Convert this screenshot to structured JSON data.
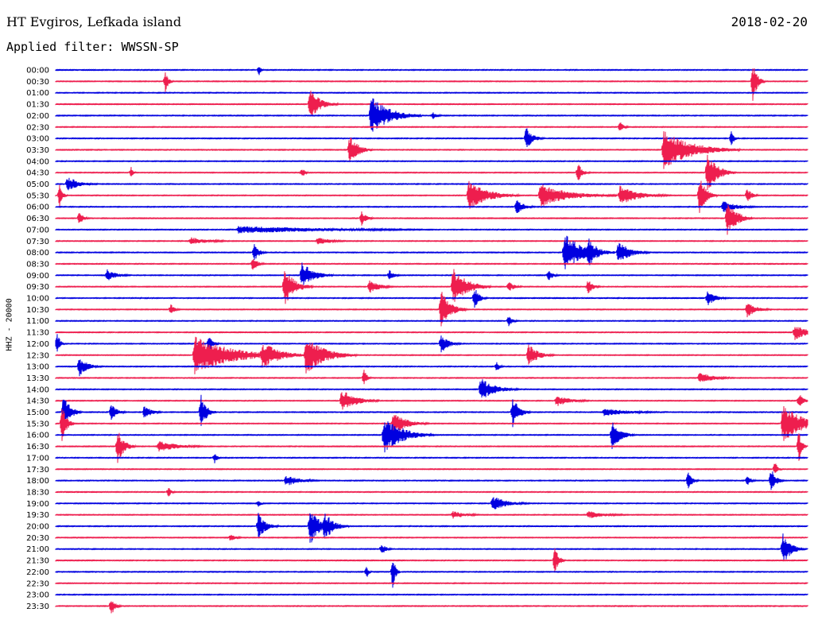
{
  "header": {
    "station": "HT Evgiros, Lefkada island",
    "filter": "Applied filter: WWSSN-SP",
    "date": "2018-02-20"
  },
  "channel_label": "HHZ - 20000",
  "colors": {
    "blue": "#0000e0",
    "red": "#ee1e4e"
  },
  "traces": [
    {
      "time": "00:00",
      "color": "blue",
      "events": [
        [
          326,
          0.3,
          4
        ]
      ]
    },
    {
      "time": "00:30",
      "color": "red",
      "events": [
        [
          208,
          0.6,
          6
        ],
        [
          947,
          1.0,
          10
        ]
      ]
    },
    {
      "time": "01:00",
      "color": "blue",
      "events": []
    },
    {
      "time": "01:30",
      "color": "red",
      "events": [
        [
          390,
          0.8,
          22
        ]
      ]
    },
    {
      "time": "02:00",
      "color": "blue",
      "events": [
        [
          467,
          1.0,
          40
        ],
        [
          545,
          0.2,
          10
        ]
      ]
    },
    {
      "time": "02:30",
      "color": "red",
      "events": [
        [
          780,
          0.3,
          8
        ]
      ]
    },
    {
      "time": "03:00",
      "color": "blue",
      "events": [
        [
          662,
          0.6,
          14
        ],
        [
          920,
          0.4,
          6
        ]
      ]
    },
    {
      "time": "03:30",
      "color": "red",
      "events": [
        [
          440,
          0.8,
          18
        ],
        [
          835,
          1.0,
          60
        ]
      ]
    },
    {
      "time": "04:00",
      "color": "blue",
      "events": []
    },
    {
      "time": "04:30",
      "color": "red",
      "events": [
        [
          165,
          0.3,
          4
        ],
        [
          380,
          0.3,
          6
        ],
        [
          727,
          0.5,
          10
        ],
        [
          890,
          1.0,
          22
        ]
      ]
    },
    {
      "time": "05:00",
      "color": "blue",
      "events": [
        [
          85,
          0.4,
          25
        ]
      ]
    },
    {
      "time": "05:30",
      "color": "red",
      "events": [
        [
          75,
          0.6,
          6
        ],
        [
          590,
          0.8,
          40
        ],
        [
          680,
          0.6,
          60
        ],
        [
          780,
          0.5,
          40
        ],
        [
          880,
          1.0,
          14
        ],
        [
          940,
          0.4,
          10
        ]
      ]
    },
    {
      "time": "06:00",
      "color": "blue",
      "events": [
        [
          650,
          0.4,
          16
        ],
        [
          910,
          0.3,
          30
        ]
      ]
    },
    {
      "time": "06:30",
      "color": "red",
      "events": [
        [
          100,
          0.4,
          8
        ],
        [
          455,
          0.4,
          10
        ],
        [
          915,
          1.0,
          20
        ]
      ]
    },
    {
      "time": "07:00",
      "color": "blue",
      "events": [
        [
          300,
          0.2,
          200
        ]
      ]
    },
    {
      "time": "07:30",
      "color": "red",
      "events": [
        [
          240,
          0.2,
          40
        ],
        [
          400,
          0.2,
          30
        ]
      ]
    },
    {
      "time": "08:00",
      "color": "blue",
      "events": [
        [
          320,
          0.5,
          10
        ],
        [
          710,
          1.0,
          40
        ],
        [
          740,
          0.8,
          20
        ],
        [
          778,
          0.6,
          25
        ]
      ]
    },
    {
      "time": "08:30",
      "color": "red",
      "events": [
        [
          318,
          0.4,
          10
        ]
      ]
    },
    {
      "time": "09:00",
      "color": "blue",
      "events": [
        [
          135,
          0.3,
          20
        ],
        [
          380,
          0.7,
          25
        ],
        [
          490,
          0.3,
          10
        ],
        [
          690,
          0.3,
          10
        ]
      ]
    },
    {
      "time": "09:30",
      "color": "red",
      "events": [
        [
          358,
          1.0,
          22
        ],
        [
          465,
          0.4,
          20
        ],
        [
          570,
          1.0,
          30
        ],
        [
          640,
          0.3,
          12
        ],
        [
          740,
          0.4,
          10
        ]
      ]
    },
    {
      "time": "10:00",
      "color": "blue",
      "events": [
        [
          597,
          0.6,
          10
        ],
        [
          890,
          0.4,
          18
        ]
      ]
    },
    {
      "time": "10:30",
      "color": "red",
      "events": [
        [
          215,
          0.3,
          8
        ],
        [
          555,
          1.0,
          20
        ],
        [
          940,
          0.4,
          20
        ]
      ]
    },
    {
      "time": "11:00",
      "color": "blue",
      "events": [
        [
          640,
          0.3,
          8
        ]
      ]
    },
    {
      "time": "11:30",
      "color": "red",
      "events": [
        [
          1000,
          0.4,
          30
        ]
      ]
    },
    {
      "time": "12:00",
      "color": "blue",
      "events": [
        [
          72,
          0.6,
          6
        ],
        [
          263,
          0.5,
          8
        ],
        [
          555,
          0.5,
          16
        ]
      ]
    },
    {
      "time": "12:30",
      "color": "red",
      "events": [
        [
          245,
          1.0,
          80
        ],
        [
          330,
          0.7,
          40
        ],
        [
          385,
          1.0,
          40
        ],
        [
          665,
          0.6,
          20
        ]
      ]
    },
    {
      "time": "13:00",
      "color": "blue",
      "events": [
        [
          100,
          0.5,
          18
        ],
        [
          625,
          0.3,
          6
        ]
      ]
    },
    {
      "time": "13:30",
      "color": "red",
      "events": [
        [
          458,
          0.5,
          6
        ],
        [
          880,
          0.3,
          30
        ]
      ]
    },
    {
      "time": "14:00",
      "color": "blue",
      "events": [
        [
          605,
          0.6,
          30
        ]
      ]
    },
    {
      "time": "14:30",
      "color": "red",
      "events": [
        [
          430,
          0.6,
          30
        ],
        [
          700,
          0.3,
          30
        ],
        [
          1005,
          0.4,
          10
        ]
      ]
    },
    {
      "time": "15:00",
      "color": "blue",
      "events": [
        [
          80,
          1.0,
          14
        ],
        [
          140,
          0.5,
          12
        ],
        [
          182,
          0.4,
          14
        ],
        [
          253,
          0.9,
          12
        ],
        [
          645,
          0.8,
          14
        ],
        [
          760,
          0.2,
          60
        ]
      ]
    },
    {
      "time": "15:30",
      "color": "red",
      "events": [
        [
          78,
          1.0,
          10
        ],
        [
          495,
          0.6,
          28
        ],
        [
          985,
          1.0,
          40
        ]
      ]
    },
    {
      "time": "16:00",
      "color": "blue",
      "events": [
        [
          483,
          1.0,
          40
        ],
        [
          770,
          0.8,
          18
        ]
      ]
    },
    {
      "time": "16:30",
      "color": "red",
      "events": [
        [
          148,
          0.9,
          14
        ],
        [
          200,
          0.3,
          40
        ],
        [
          1005,
          0.9,
          6
        ]
      ]
    },
    {
      "time": "17:00",
      "color": "blue",
      "events": [
        [
          270,
          0.3,
          6
        ]
      ]
    },
    {
      "time": "17:30",
      "color": "red",
      "events": [
        [
          975,
          0.4,
          6
        ]
      ]
    },
    {
      "time": "18:00",
      "color": "blue",
      "events": [
        [
          360,
          0.3,
          30
        ],
        [
          866,
          0.6,
          8
        ],
        [
          940,
          0.3,
          8
        ],
        [
          970,
          0.7,
          10
        ]
      ]
    },
    {
      "time": "18:30",
      "color": "red",
      "events": [
        [
          212,
          0.3,
          6
        ]
      ]
    },
    {
      "time": "19:00",
      "color": "blue",
      "events": [
        [
          325,
          0.2,
          6
        ],
        [
          620,
          0.4,
          30
        ]
      ]
    },
    {
      "time": "19:30",
      "color": "red",
      "events": [
        [
          570,
          0.2,
          30
        ],
        [
          740,
          0.2,
          40
        ]
      ]
    },
    {
      "time": "20:00",
      "color": "blue",
      "events": [
        [
          325,
          0.7,
          16
        ],
        [
          390,
          1.0,
          20
        ],
        [
          408,
          0.8,
          20
        ]
      ]
    },
    {
      "time": "20:30",
      "color": "red",
      "events": [
        [
          290,
          0.2,
          12
        ]
      ]
    },
    {
      "time": "21:00",
      "color": "blue",
      "events": [
        [
          480,
          0.3,
          10
        ],
        [
          985,
          0.8,
          18
        ]
      ]
    },
    {
      "time": "21:30",
      "color": "red",
      "events": [
        [
          698,
          0.8,
          8
        ]
      ]
    },
    {
      "time": "22:00",
      "color": "blue",
      "events": [
        [
          461,
          0.4,
          4
        ],
        [
          494,
          0.9,
          6
        ]
      ]
    },
    {
      "time": "22:30",
      "color": "red",
      "events": []
    },
    {
      "time": "23:00",
      "color": "blue",
      "events": []
    },
    {
      "time": "23:30",
      "color": "red",
      "events": [
        [
          140,
          0.5,
          8
        ]
      ]
    }
  ]
}
